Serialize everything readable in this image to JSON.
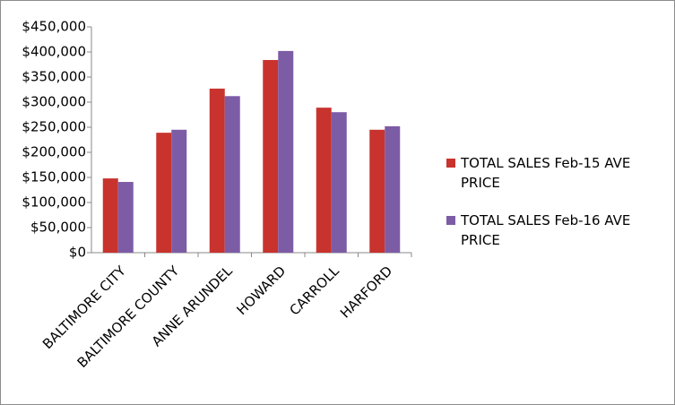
{
  "chart_data": {
    "type": "bar",
    "categories": [
      "BALTIMORE CITY",
      "BALTIMORE COUNTY",
      "ANNE ARUNDEL",
      "HOWARD",
      "CARROLL",
      "HARFORD"
    ],
    "series": [
      {
        "name": "TOTAL SALES Feb-15 AVE PRICE",
        "color": "#c8332e",
        "values": [
          148000,
          239000,
          327000,
          384000,
          289000,
          245000
        ]
      },
      {
        "name": "TOTAL SALES Feb-16 AVE PRICE",
        "color": "#7d5ca6",
        "values": [
          141000,
          245000,
          312000,
          402000,
          280000,
          252000
        ]
      }
    ],
    "ylim": [
      0,
      450000
    ],
    "yticks": [
      {
        "value": 0,
        "label": "$0"
      },
      {
        "value": 50000,
        "label": "$50,000"
      },
      {
        "value": 100000,
        "label": "$100,000"
      },
      {
        "value": 150000,
        "label": "$150,000"
      },
      {
        "value": 200000,
        "label": "$200,000"
      },
      {
        "value": 250000,
        "label": "$250,000"
      },
      {
        "value": 300000,
        "label": "$300,000"
      },
      {
        "value": 350000,
        "label": "$350,000"
      },
      {
        "value": 400000,
        "label": "$400,000"
      },
      {
        "value": 450000,
        "label": "$450,000"
      }
    ],
    "grid": false,
    "legend": "right"
  }
}
